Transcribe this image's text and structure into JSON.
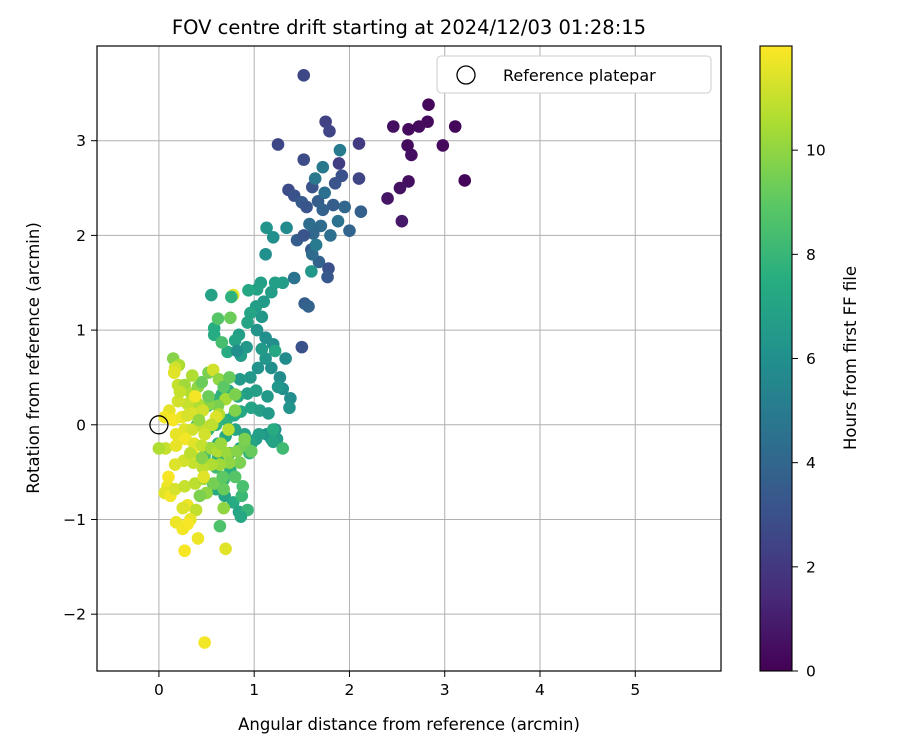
{
  "chart_data": {
    "type": "scatter",
    "title": "FOV centre drift starting at 2024/12/03 01:28:15",
    "xlabel": "Angular distance from reference (arcmin)",
    "ylabel": "Rotation from reference (arcmin)",
    "xlim": [
      -0.65,
      5.9
    ],
    "ylim": [
      -2.6,
      4.0
    ],
    "xticks": [
      0,
      1,
      2,
      3,
      4,
      5
    ],
    "yticks": [
      -2,
      -1,
      0,
      1,
      2,
      3
    ],
    "xtick_labels": [
      "0",
      "1",
      "2",
      "3",
      "4",
      "5"
    ],
    "ytick_labels": [
      "−2",
      "−1",
      "0",
      "1",
      "2",
      "3"
    ],
    "grid": true,
    "legend": {
      "placement": "top-right",
      "label": "Reference platepar"
    },
    "reference_point": {
      "x": 0,
      "y": 0
    },
    "colorbar": {
      "label": "Hours from first FF file",
      "colormap": "viridis",
      "range": [
        0,
        12
      ],
      "ticks": [
        0,
        2,
        4,
        6,
        8,
        10
      ],
      "tick_labels": [
        "0",
        "2",
        "4",
        "6",
        "8",
        "10"
      ]
    },
    "points": [
      [
        3.21,
        2.58,
        0.1
      ],
      [
        3.11,
        3.15,
        0.2
      ],
      [
        2.98,
        2.95,
        0.3
      ],
      [
        2.83,
        3.38,
        0.2
      ],
      [
        2.82,
        3.2,
        0.3
      ],
      [
        2.73,
        3.15,
        0.4
      ],
      [
        2.62,
        3.12,
        0.3
      ],
      [
        2.61,
        2.95,
        0.4
      ],
      [
        2.65,
        2.85,
        0.5
      ],
      [
        2.62,
        2.57,
        0.5
      ],
      [
        2.53,
        2.5,
        0.6
      ],
      [
        2.46,
        3.15,
        0.5
      ],
      [
        2.4,
        2.39,
        0.7
      ],
      [
        2.55,
        2.15,
        0.8
      ],
      [
        1.52,
        3.69,
        2.6
      ],
      [
        2.1,
        2.97,
        2.1
      ],
      [
        1.75,
        3.2,
        2.4
      ],
      [
        1.79,
        3.1,
        2.5
      ],
      [
        1.25,
        2.96,
        2.6
      ],
      [
        1.52,
        2.8,
        2.8
      ],
      [
        1.89,
        2.76,
        2.2
      ],
      [
        2.1,
        2.6,
        2.5
      ],
      [
        1.92,
        2.63,
        3.0
      ],
      [
        1.85,
        2.55,
        3.2
      ],
      [
        1.61,
        2.51,
        3.1
      ],
      [
        1.36,
        2.48,
        2.8
      ],
      [
        1.42,
        2.42,
        3.0
      ],
      [
        1.5,
        2.35,
        3.4
      ],
      [
        1.55,
        2.3,
        3.2
      ],
      [
        1.67,
        2.36,
        3.6
      ],
      [
        1.72,
        2.27,
        3.8
      ],
      [
        1.83,
        2.32,
        3.6
      ],
      [
        1.95,
        2.3,
        4.0
      ],
      [
        2.0,
        2.05,
        3.9
      ],
      [
        2.12,
        2.25,
        3.7
      ],
      [
        1.7,
        2.1,
        4.2
      ],
      [
        1.62,
        2.02,
        4.0
      ],
      [
        1.45,
        1.95,
        3.6
      ],
      [
        1.52,
        2.0,
        3.2
      ],
      [
        1.6,
        1.85,
        3.4
      ],
      [
        1.68,
        1.72,
        3.8
      ],
      [
        1.78,
        1.65,
        3.0
      ],
      [
        1.77,
        1.56,
        3.3
      ],
      [
        1.61,
        1.8,
        4.2
      ],
      [
        1.53,
        1.28,
        3.6
      ],
      [
        1.57,
        1.25,
        3.8
      ],
      [
        1.5,
        0.82,
        3.0
      ],
      [
        1.8,
        2.0,
        4.4
      ],
      [
        1.88,
        2.15,
        4.6
      ],
      [
        1.74,
        2.45,
        4.4
      ],
      [
        1.64,
        2.6,
        4.8
      ],
      [
        1.9,
        2.9,
        5.0
      ],
      [
        1.72,
        2.72,
        4.9
      ],
      [
        1.58,
        2.12,
        4.3
      ],
      [
        1.42,
        1.55,
        4.6
      ],
      [
        1.65,
        1.9,
        5.0
      ],
      [
        1.13,
        2.08,
        6.2
      ],
      [
        1.2,
        1.98,
        6.0
      ],
      [
        1.34,
        2.08,
        5.7
      ],
      [
        1.12,
        1.8,
        6.0
      ],
      [
        1.6,
        1.62,
        6.4
      ],
      [
        1.3,
        1.5,
        6.6
      ],
      [
        1.22,
        1.5,
        6.8
      ],
      [
        1.07,
        1.5,
        6.8
      ],
      [
        1.03,
        1.43,
        6.9
      ],
      [
        0.94,
        1.42,
        7.2
      ],
      [
        1.18,
        1.4,
        6.6
      ],
      [
        1.1,
        1.3,
        6.5
      ],
      [
        1.02,
        1.25,
        6.6
      ],
      [
        0.96,
        1.18,
        7.0
      ],
      [
        0.93,
        1.08,
        7.0
      ],
      [
        1.08,
        1.14,
        6.4
      ],
      [
        0.84,
        0.95,
        6.8
      ],
      [
        1.03,
        1.0,
        6.2
      ],
      [
        1.12,
        0.92,
        6.0
      ],
      [
        1.2,
        0.85,
        5.9
      ],
      [
        0.92,
        0.82,
        6.4
      ],
      [
        0.86,
        0.73,
        6.6
      ],
      [
        0.8,
        0.89,
        7.0
      ],
      [
        0.72,
        0.77,
        7.4
      ],
      [
        1.33,
        0.7,
        5.8
      ],
      [
        1.18,
        0.6,
        6.0
      ],
      [
        1.27,
        0.5,
        5.8
      ],
      [
        1.04,
        0.6,
        6.2
      ],
      [
        0.96,
        0.5,
        6.4
      ],
      [
        0.85,
        0.48,
        6.5
      ],
      [
        1.3,
        0.38,
        6.0
      ],
      [
        1.38,
        0.28,
        5.9
      ],
      [
        1.37,
        0.18,
        6.2
      ],
      [
        1.25,
        0.4,
        6.3
      ],
      [
        1.14,
        0.3,
        6.5
      ],
      [
        1.02,
        0.36,
        6.7
      ],
      [
        0.93,
        0.33,
        6.8
      ],
      [
        0.83,
        0.3,
        7.2
      ],
      [
        0.73,
        0.36,
        7.4
      ],
      [
        0.66,
        0.32,
        7.6
      ],
      [
        0.6,
        0.26,
        7.8
      ],
      [
        0.51,
        0.2,
        8.0
      ],
      [
        0.42,
        0.12,
        8.2
      ],
      [
        0.4,
        0.0,
        8.4
      ],
      [
        0.52,
        -0.05,
        8.0
      ],
      [
        0.6,
        0.0,
        7.8
      ],
      [
        0.71,
        0.05,
        7.7
      ],
      [
        0.79,
        0.1,
        7.4
      ],
      [
        0.86,
        0.14,
        7.2
      ],
      [
        0.97,
        0.18,
        7.0
      ],
      [
        1.06,
        0.15,
        6.7
      ],
      [
        1.15,
        0.12,
        6.5
      ],
      [
        1.22,
        -0.05,
        6.0
      ],
      [
        1.13,
        -0.1,
        6.3
      ],
      [
        1.02,
        -0.15,
        6.6
      ],
      [
        0.9,
        -0.1,
        6.9
      ],
      [
        0.8,
        -0.05,
        7.1
      ],
      [
        0.7,
        -0.12,
        7.3
      ],
      [
        0.62,
        -0.2,
        7.6
      ],
      [
        0.53,
        -0.25,
        7.9
      ],
      [
        0.48,
        -0.33,
        8.3
      ],
      [
        0.62,
        -0.35,
        7.8
      ],
      [
        0.74,
        -0.3,
        7.5
      ],
      [
        0.85,
        -0.25,
        7.2
      ],
      [
        0.97,
        -0.2,
        7.0
      ],
      [
        1.05,
        -0.1,
        6.8
      ],
      [
        1.18,
        -0.15,
        6.4
      ],
      [
        1.24,
        -0.15,
        6.6
      ],
      [
        1.2,
        -0.18,
        7.0
      ],
      [
        0.95,
        -0.3,
        8.0
      ],
      [
        0.75,
        -0.48,
        7.6
      ],
      [
        0.68,
        -0.58,
        8.0
      ],
      [
        0.57,
        -0.62,
        7.8
      ],
      [
        0.6,
        -0.68,
        7.3
      ],
      [
        0.69,
        -0.75,
        7.0
      ],
      [
        0.78,
        -0.82,
        7.4
      ],
      [
        0.84,
        -0.92,
        7.0
      ],
      [
        0.93,
        -0.9,
        8.0
      ],
      [
        0.86,
        -0.97,
        7.2
      ],
      [
        0.87,
        -0.75,
        8.1
      ],
      [
        0.88,
        -0.65,
        8.5
      ],
      [
        0.8,
        -0.55,
        8.8
      ],
      [
        0.6,
        -0.45,
        8.2
      ],
      [
        0.64,
        -1.07,
        8.6
      ],
      [
        0.55,
        1.37,
        6.9
      ],
      [
        0.58,
        1.02,
        7.5
      ],
      [
        0.58,
        0.95,
        7.4
      ],
      [
        0.62,
        1.12,
        8.8
      ],
      [
        0.66,
        0.87,
        8.4
      ],
      [
        0.75,
        1.13,
        9.3
      ],
      [
        0.78,
        1.37,
        11.5
      ],
      [
        0.76,
        1.35,
        7.7
      ],
      [
        0.82,
        0.78,
        6.0
      ],
      [
        1.22,
        0.78,
        7.2
      ],
      [
        1.12,
        0.7,
        6.3
      ],
      [
        1.08,
        0.8,
        6.5
      ],
      [
        1.3,
        -0.25,
        8.2
      ],
      [
        1.2,
        -0.05,
        7.4
      ],
      [
        0.15,
        0.7,
        9.8
      ],
      [
        0.21,
        0.63,
        10.5
      ],
      [
        0.17,
        0.6,
        11.2
      ],
      [
        0.16,
        0.55,
        11.5
      ],
      [
        0.2,
        0.42,
        11.0
      ],
      [
        0.27,
        0.42,
        10.3
      ],
      [
        0.34,
        0.33,
        10.6
      ],
      [
        0.41,
        0.4,
        10.0
      ],
      [
        0.45,
        0.45,
        9.3
      ],
      [
        0.52,
        0.55,
        9.6
      ],
      [
        0.57,
        0.58,
        11.2
      ],
      [
        0.63,
        0.48,
        10.0
      ],
      [
        0.68,
        0.4,
        9.0
      ],
      [
        0.74,
        0.5,
        9.2
      ],
      [
        0.7,
        0.27,
        10.4
      ],
      [
        0.8,
        0.32,
        9.6
      ],
      [
        0.62,
        0.2,
        9.6
      ],
      [
        0.52,
        0.22,
        9.9
      ],
      [
        0.41,
        0.22,
        10.6
      ],
      [
        0.3,
        0.22,
        11.0
      ],
      [
        0.2,
        0.25,
        11.2
      ],
      [
        0.11,
        0.15,
        11.6
      ],
      [
        0.06,
        0.08,
        11.8
      ],
      [
        0.15,
        0.05,
        11.9
      ],
      [
        0.24,
        0.08,
        11.7
      ],
      [
        0.35,
        0.12,
        11.4
      ],
      [
        0.46,
        0.15,
        11.2
      ],
      [
        0.27,
        -0.05,
        11.5
      ],
      [
        0.35,
        -0.05,
        11.2
      ],
      [
        0.46,
        -0.02,
        10.9
      ],
      [
        0.56,
        0.0,
        10.6
      ],
      [
        0.18,
        -0.1,
        11.6
      ],
      [
        0.28,
        -0.15,
        11.8
      ],
      [
        0.37,
        -0.2,
        11.5
      ],
      [
        0.45,
        -0.22,
        11.0
      ],
      [
        0.55,
        -0.25,
        10.3
      ],
      [
        0.62,
        -0.28,
        10.6
      ],
      [
        0.72,
        -0.3,
        10.2
      ],
      [
        0.82,
        -0.28,
        9.8
      ],
      [
        0.9,
        -0.22,
        9.5
      ],
      [
        0.97,
        -0.28,
        9.2
      ],
      [
        0.85,
        -0.4,
        9.6
      ],
      [
        0.74,
        -0.4,
        10.0
      ],
      [
        0.64,
        -0.42,
        10.3
      ],
      [
        0.55,
        -0.42,
        10.6
      ],
      [
        0.46,
        -0.45,
        10.8
      ],
      [
        0.36,
        -0.4,
        11.0
      ],
      [
        0.26,
        -0.38,
        11.2
      ],
      [
        0.17,
        -0.42,
        11.4
      ],
      [
        0.07,
        -0.25,
        11.0
      ],
      [
        0.18,
        -0.22,
        11.6
      ],
      [
        0.35,
        -0.3,
        11.9
      ],
      [
        0.1,
        -0.55,
        11.9
      ],
      [
        0.09,
        -0.65,
        11.7
      ],
      [
        0.06,
        -0.72,
        11.5
      ],
      [
        0.12,
        -0.75,
        11.8
      ],
      [
        0.17,
        -0.68,
        11.3
      ],
      [
        0.27,
        -0.65,
        11.0
      ],
      [
        0.38,
        -0.62,
        10.8
      ],
      [
        0.47,
        -0.57,
        10.3
      ],
      [
        0.5,
        -0.72,
        10.0
      ],
      [
        0.58,
        -0.62,
        9.5
      ],
      [
        0.68,
        -0.68,
        9.2
      ],
      [
        0.67,
        -0.55,
        9.0
      ],
      [
        0.47,
        -0.55,
        11.5
      ],
      [
        0.3,
        -0.85,
        11.7
      ],
      [
        0.25,
        -0.88,
        11.4
      ],
      [
        0.39,
        -0.9,
        10.9
      ],
      [
        0.33,
        -1.0,
        11.6
      ],
      [
        0.3,
        -1.05,
        11.9
      ],
      [
        0.18,
        -1.03,
        11.7
      ],
      [
        0.25,
        -1.1,
        11.8
      ],
      [
        0.27,
        -1.33,
        11.9
      ],
      [
        0.41,
        -1.2,
        11.7
      ],
      [
        0.7,
        -1.31,
        11.5
      ],
      [
        0.48,
        -2.3,
        11.8
      ],
      [
        0.0,
        -0.25,
        10.6
      ],
      [
        0.43,
        -0.75,
        9.6
      ],
      [
        0.68,
        -0.88,
        10.0
      ],
      [
        0.9,
        -0.15,
        9.6
      ],
      [
        0.8,
        0.15,
        9.7
      ],
      [
        0.73,
        -0.05,
        10.8
      ],
      [
        0.45,
        -0.35,
        9.8
      ],
      [
        0.22,
        0.35,
        11.0
      ],
      [
        0.3,
        0.1,
        11.3
      ],
      [
        0.52,
        0.3,
        9.3
      ],
      [
        0.35,
        0.52,
        10.6
      ],
      [
        0.42,
        0.05,
        10.1
      ],
      [
        0.63,
        0.11,
        10.7
      ],
      [
        0.6,
        0.08,
        11.4
      ],
      [
        0.55,
        0.0,
        10.9
      ],
      [
        0.48,
        -0.1,
        11.2
      ],
      [
        0.65,
        -0.2,
        10.2
      ],
      [
        0.38,
        0.3,
        11.8
      ],
      [
        0.33,
        -0.3,
        10.8
      ]
    ]
  }
}
